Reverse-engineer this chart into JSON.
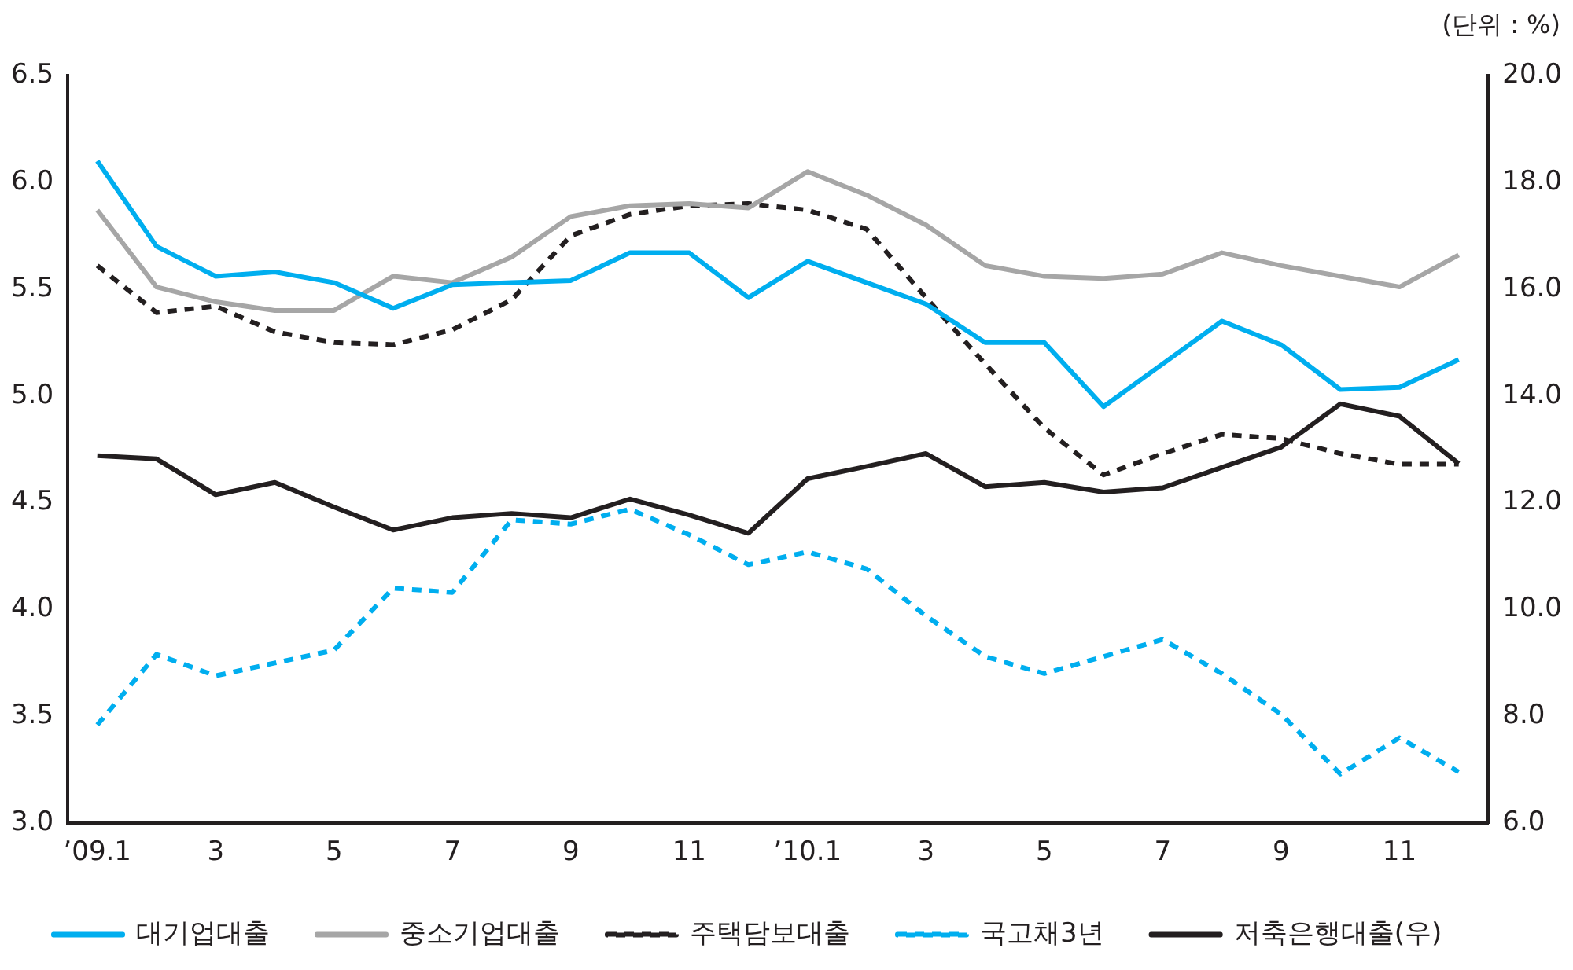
{
  "chart_data": {
    "type": "line",
    "annotations": [
      "(단위 : %)"
    ],
    "categories": [
      "’09.1",
      null,
      "3",
      null,
      "5",
      null,
      "7",
      null,
      "9",
      null,
      "11",
      null,
      "’10.1",
      null,
      "3",
      null,
      "5",
      null,
      "7",
      null,
      "9",
      null,
      "11",
      null
    ],
    "ylim": [
      3.0,
      6.5
    ],
    "yticks": [
      {
        "value": 3,
        "label": "3.0"
      },
      3.5,
      {
        "value": 4,
        "label": "4.0"
      },
      4.5,
      {
        "value": 5,
        "label": "5.0"
      },
      5.5,
      {
        "value": 6,
        "label": "6.0"
      },
      6.5
    ],
    "y2lim": [
      6,
      20
    ],
    "y2ticks": [
      {
        "value": 6,
        "label": "6.0"
      },
      {
        "value": 8,
        "label": "8.0"
      },
      {
        "value": 10,
        "label": "10.0"
      },
      {
        "value": 12,
        "label": "12.0"
      },
      {
        "value": 14,
        "label": "14.0"
      },
      {
        "value": 16,
        "label": "16.0"
      },
      {
        "value": 18,
        "label": "18.0"
      },
      {
        "value": 20,
        "label": "20.0"
      }
    ],
    "grid": false,
    "legend": "bottom",
    "marker": "none",
    "series": [
      {
        "name": "대기업대출",
        "color": "#00aeef",
        "line_style": "solid",
        "values": [
          6.1,
          5.7,
          5.56,
          5.58,
          5.53,
          5.41,
          5.52,
          5.53,
          5.54,
          5.67,
          5.67,
          5.46,
          5.63,
          5.53,
          5.43,
          5.25,
          5.25,
          4.95,
          5.15,
          5.35,
          5.24,
          5.03,
          5.04,
          5.17
        ]
      },
      {
        "name": "중소기업대출",
        "color": "#a6a6a6",
        "line_style": "solid",
        "values": [
          5.87,
          5.51,
          5.44,
          5.4,
          5.4,
          5.56,
          5.53,
          5.65,
          5.84,
          5.89,
          5.9,
          5.88,
          6.05,
          5.94,
          5.8,
          5.61,
          5.56,
          5.55,
          5.57,
          5.67,
          5.61,
          5.56,
          5.51,
          5.66
        ]
      },
      {
        "name": "주택담보대출",
        "color": "#231f20",
        "line_style": "dashed",
        "values": [
          5.61,
          5.39,
          5.42,
          5.3,
          5.25,
          5.24,
          5.31,
          5.45,
          5.75,
          5.85,
          5.89,
          5.9,
          5.87,
          5.78,
          5.46,
          5.15,
          4.85,
          4.63,
          4.73,
          4.82,
          4.8,
          4.73,
          4.68,
          4.68
        ]
      },
      {
        "name": "국고채3년",
        "color": "#00aeef",
        "line_style": "dashed",
        "values": [
          3.46,
          3.79,
          3.69,
          3.75,
          3.81,
          4.1,
          4.08,
          4.42,
          4.4,
          4.47,
          4.35,
          4.21,
          4.27,
          4.19,
          3.97,
          3.78,
          3.7,
          3.78,
          3.86,
          3.7,
          3.51,
          3.23,
          3.4,
          3.24
        ]
      },
      {
        "name": "저축은행대출(우)",
        "color": "#231f20",
        "line_style": "solid",
        "axis": "y2",
        "values": [
          12.88,
          12.82,
          12.15,
          12.38,
          11.92,
          11.49,
          11.72,
          11.8,
          11.72,
          12.07,
          11.77,
          11.43,
          12.45,
          12.68,
          12.92,
          12.3,
          12.38,
          12.2,
          12.28,
          12.66,
          13.04,
          13.85,
          13.62,
          12.73
        ]
      }
    ]
  }
}
